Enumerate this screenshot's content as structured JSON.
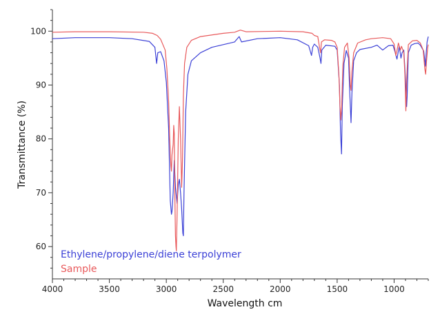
{
  "chart_data": {
    "type": "line",
    "xlabel": "Wavelength cm",
    "ylabel": "Transmittance (%)",
    "xlim": [
      4000,
      700
    ],
    "ylim": [
      54,
      104
    ],
    "x_ticks": [
      4000,
      3500,
      3000,
      2500,
      2000,
      1500,
      1000
    ],
    "x_tick_labels": [
      "4000",
      "3500",
      "3000",
      "2500",
      "2000",
      "1500",
      "1000"
    ],
    "y_ticks": [
      60,
      70,
      80,
      90,
      100
    ],
    "y_tick_labels": [
      "60",
      "70",
      "80",
      "90",
      "100"
    ],
    "legend_placement": "bottom-left",
    "series": [
      {
        "name": "Ethylene/propylene/diene terpolymer",
        "color": "#3a3fd6",
        "points": [
          [
            4000,
            98.6
          ],
          [
            3800,
            98.8
          ],
          [
            3500,
            98.8
          ],
          [
            3300,
            98.6
          ],
          [
            3150,
            98.1
          ],
          [
            3100,
            97.0
          ],
          [
            3085,
            94.0
          ],
          [
            3075,
            96.0
          ],
          [
            3050,
            96.2
          ],
          [
            3020,
            94.5
          ],
          [
            3000,
            90.5
          ],
          [
            2980,
            82.0
          ],
          [
            2965,
            68.5
          ],
          [
            2955,
            66.0
          ],
          [
            2950,
            66.5
          ],
          [
            2940,
            70.0
          ],
          [
            2930,
            76.0
          ],
          [
            2920,
            71.0
          ],
          [
            2905,
            68.0
          ],
          [
            2895,
            71.5
          ],
          [
            2885,
            72.5
          ],
          [
            2875,
            70.0
          ],
          [
            2865,
            67.0
          ],
          [
            2855,
            62.5
          ],
          [
            2850,
            62.0
          ],
          [
            2845,
            70.0
          ],
          [
            2830,
            85.0
          ],
          [
            2810,
            92.0
          ],
          [
            2780,
            94.5
          ],
          [
            2700,
            96.0
          ],
          [
            2600,
            97.0
          ],
          [
            2400,
            98.0
          ],
          [
            2360,
            99.0
          ],
          [
            2340,
            98.0
          ],
          [
            2200,
            98.6
          ],
          [
            2000,
            98.8
          ],
          [
            1850,
            98.4
          ],
          [
            1750,
            97.3
          ],
          [
            1725,
            95.5
          ],
          [
            1715,
            97.0
          ],
          [
            1700,
            97.6
          ],
          [
            1670,
            97.0
          ],
          [
            1650,
            95.0
          ],
          [
            1642,
            94.0
          ],
          [
            1635,
            96.5
          ],
          [
            1600,
            97.4
          ],
          [
            1520,
            97.2
          ],
          [
            1500,
            96.5
          ],
          [
            1480,
            90.0
          ],
          [
            1470,
            81.0
          ],
          [
            1462,
            77.2
          ],
          [
            1455,
            86.0
          ],
          [
            1440,
            94.0
          ],
          [
            1420,
            96.4
          ],
          [
            1400,
            95.0
          ],
          [
            1390,
            89.0
          ],
          [
            1378,
            83.0
          ],
          [
            1370,
            88.5
          ],
          [
            1355,
            94.5
          ],
          [
            1330,
            96.0
          ],
          [
            1300,
            96.6
          ],
          [
            1200,
            97.0
          ],
          [
            1150,
            97.4
          ],
          [
            1100,
            96.5
          ],
          [
            1050,
            97.3
          ],
          [
            1010,
            97.4
          ],
          [
            990,
            96.0
          ],
          [
            975,
            94.8
          ],
          [
            965,
            96.0
          ],
          [
            955,
            97.2
          ],
          [
            940,
            95.0
          ],
          [
            930,
            96.0
          ],
          [
            915,
            96.5
          ],
          [
            900,
            91.0
          ],
          [
            890,
            86.0
          ],
          [
            885,
            88.0
          ],
          [
            875,
            96.0
          ],
          [
            850,
            97.4
          ],
          [
            820,
            97.7
          ],
          [
            790,
            97.8
          ],
          [
            770,
            97.4
          ],
          [
            740,
            96.3
          ],
          [
            725,
            93.5
          ],
          [
            720,
            95.5
          ],
          [
            710,
            98.0
          ],
          [
            700,
            99.0
          ]
        ]
      },
      {
        "name": "Sample",
        "color": "#e8585a",
        "points": [
          [
            4000,
            99.8
          ],
          [
            3800,
            99.9
          ],
          [
            3500,
            99.9
          ],
          [
            3200,
            99.8
          ],
          [
            3120,
            99.6
          ],
          [
            3080,
            99.2
          ],
          [
            3050,
            98.5
          ],
          [
            3030,
            97.5
          ],
          [
            3010,
            96.5
          ],
          [
            2995,
            93.0
          ],
          [
            2980,
            87.0
          ],
          [
            2970,
            80.0
          ],
          [
            2960,
            75.0
          ],
          [
            2955,
            74.0
          ],
          [
            2950,
            77.0
          ],
          [
            2940,
            79.0
          ],
          [
            2935,
            82.5
          ],
          [
            2930,
            81.0
          ],
          [
            2925,
            70.0
          ],
          [
            2920,
            62.0
          ],
          [
            2915,
            60.0
          ],
          [
            2912,
            59.2
          ],
          [
            2905,
            66.0
          ],
          [
            2895,
            80.0
          ],
          [
            2885,
            86.0
          ],
          [
            2875,
            80.0
          ],
          [
            2865,
            71.0
          ],
          [
            2858,
            76.0
          ],
          [
            2850,
            88.0
          ],
          [
            2840,
            94.0
          ],
          [
            2820,
            97.0
          ],
          [
            2780,
            98.3
          ],
          [
            2700,
            99.0
          ],
          [
            2500,
            99.6
          ],
          [
            2400,
            99.8
          ],
          [
            2350,
            100.2
          ],
          [
            2300,
            99.9
          ],
          [
            2000,
            100.0
          ],
          [
            1800,
            99.9
          ],
          [
            1720,
            99.6
          ],
          [
            1700,
            99.2
          ],
          [
            1670,
            99.0
          ],
          [
            1655,
            97.0
          ],
          [
            1645,
            96.0
          ],
          [
            1638,
            98.0
          ],
          [
            1610,
            98.4
          ],
          [
            1550,
            98.3
          ],
          [
            1520,
            98.0
          ],
          [
            1500,
            97.0
          ],
          [
            1485,
            92.0
          ],
          [
            1475,
            86.0
          ],
          [
            1468,
            83.5
          ],
          [
            1460,
            86.0
          ],
          [
            1450,
            93.5
          ],
          [
            1435,
            97.0
          ],
          [
            1410,
            97.8
          ],
          [
            1395,
            95.0
          ],
          [
            1385,
            90.0
          ],
          [
            1378,
            89.0
          ],
          [
            1372,
            92.0
          ],
          [
            1355,
            96.0
          ],
          [
            1320,
            97.8
          ],
          [
            1250,
            98.4
          ],
          [
            1200,
            98.6
          ],
          [
            1100,
            98.8
          ],
          [
            1030,
            98.6
          ],
          [
            1000,
            97.6
          ],
          [
            985,
            95.5
          ],
          [
            975,
            96.4
          ],
          [
            962,
            97.8
          ],
          [
            945,
            96.5
          ],
          [
            935,
            97.2
          ],
          [
            915,
            96.0
          ],
          [
            905,
            92.0
          ],
          [
            897,
            85.2
          ],
          [
            888,
            92.0
          ],
          [
            875,
            97.5
          ],
          [
            840,
            98.2
          ],
          [
            800,
            98.3
          ],
          [
            770,
            97.8
          ],
          [
            745,
            96.5
          ],
          [
            730,
            93.0
          ],
          [
            723,
            92.0
          ],
          [
            715,
            94.5
          ],
          [
            705,
            97.0
          ],
          [
            700,
            97.5
          ]
        ]
      }
    ]
  }
}
